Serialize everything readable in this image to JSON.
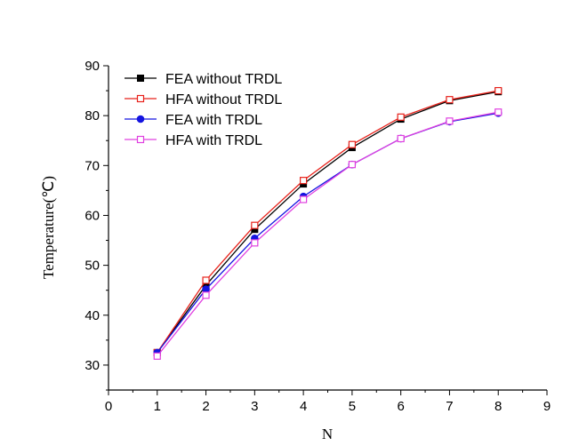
{
  "chart_data": {
    "type": "line",
    "title": "",
    "xlabel": "N",
    "ylabel": "Temperature(℃)",
    "xlim": [
      0,
      9
    ],
    "ylim": [
      25,
      90
    ],
    "xticks": [
      0,
      1,
      2,
      3,
      4,
      5,
      6,
      7,
      8,
      9
    ],
    "yticks": [
      30,
      40,
      50,
      60,
      70,
      80,
      90
    ],
    "grid": false,
    "legend_position": "top-left",
    "x": [
      1,
      2,
      3,
      4,
      5,
      6,
      7,
      8
    ],
    "series": [
      {
        "name": "FEA without TRDL",
        "color": "#000000",
        "marker": "square-filled",
        "values": [
          32.5,
          46,
          57.2,
          66.3,
          73.6,
          79.3,
          83.0,
          84.8
        ]
      },
      {
        "name": "HFA without TRDL",
        "color": "#e8221b",
        "marker": "square-open",
        "values": [
          32.5,
          47.0,
          58.0,
          67.0,
          74.2,
          79.7,
          83.2,
          85.0
        ]
      },
      {
        "name": "FEA with TRDL",
        "color": "#1414e0",
        "marker": "circle-filled",
        "values": [
          32.5,
          45.2,
          55.4,
          63.8,
          70.2,
          75.4,
          78.8,
          80.5
        ]
      },
      {
        "name": "HFA with TRDL",
        "color": "#e040e0",
        "marker": "square-open",
        "values": [
          31.8,
          44.0,
          54.5,
          63.2,
          70.2,
          75.4,
          78.9,
          80.7
        ]
      }
    ]
  }
}
